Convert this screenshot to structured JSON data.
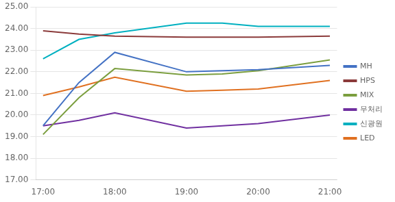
{
  "chart_data": {
    "type": "line",
    "x": [
      0,
      0.5,
      1,
      2,
      2.5,
      3,
      4
    ],
    "series": [
      {
        "name": "MH",
        "color": "#4472C4",
        "values": [
          19.5,
          21.5,
          22.9,
          22.0,
          22.05,
          22.1,
          22.3
        ]
      },
      {
        "name": "HPS",
        "color": "#8B3A3A",
        "values": [
          23.9,
          23.75,
          23.65,
          23.6,
          23.6,
          23.6,
          23.65
        ]
      },
      {
        "name": "MIX",
        "color": "#7B9E3E",
        "values": [
          19.1,
          20.8,
          22.15,
          21.85,
          21.9,
          22.05,
          22.55
        ]
      },
      {
        "name": "무처리",
        "color": "#7030A0",
        "values": [
          19.5,
          19.75,
          20.1,
          19.4,
          19.5,
          19.6,
          20.0
        ]
      },
      {
        "name": "신광원",
        "color": "#00B0C0",
        "values": [
          22.6,
          23.5,
          23.8,
          24.25,
          24.25,
          24.1,
          24.1
        ]
      },
      {
        "name": "LED",
        "color": "#E07020",
        "values": [
          20.9,
          21.3,
          21.75,
          21.1,
          21.15,
          21.2,
          21.6
        ]
      }
    ],
    "xlim": [
      -0.1,
      4.1
    ],
    "xticks": [
      {
        "value": 0,
        "label": "17:00"
      },
      {
        "value": 1,
        "label": "18:00"
      },
      {
        "value": 2,
        "label": "19:00"
      },
      {
        "value": 3,
        "label": "20:00"
      },
      {
        "value": 4,
        "label": "21:00"
      }
    ],
    "ylim": [
      17.0,
      25.0
    ],
    "yticks": [
      {
        "value": 17.0,
        "label": "17.00"
      },
      {
        "value": 18.0,
        "label": "18.00"
      },
      {
        "value": 19.0,
        "label": "19.00"
      },
      {
        "value": 20.0,
        "label": "20.00"
      },
      {
        "value": 21.0,
        "label": "21.00"
      },
      {
        "value": 22.0,
        "label": "22.00"
      },
      {
        "value": 23.0,
        "label": "23.00"
      },
      {
        "value": 24.0,
        "label": "24.00"
      },
      {
        "value": 25.0,
        "label": "25.00"
      }
    ],
    "grid": "y",
    "legend": "right"
  }
}
